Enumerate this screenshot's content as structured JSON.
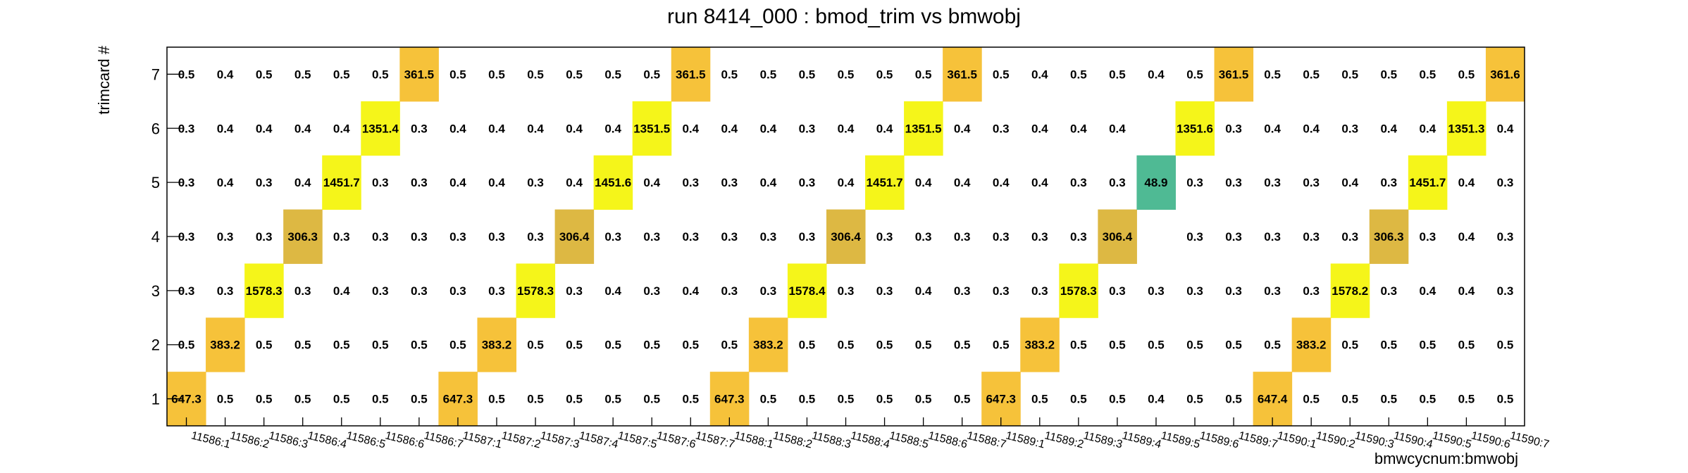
{
  "chart_data": {
    "type": "heatmap",
    "title": "run 8414_000 : bmod_trim vs bmwobj",
    "xlabel": "bmwcycnum:bmwobj",
    "ylabel": "trimcard #",
    "x_categories": [
      "11586:1",
      "11586:2",
      "11586:3",
      "11586:4",
      "11586:5",
      "11586:6",
      "11586:7",
      "11587:1",
      "11587:2",
      "11587:3",
      "11587:4",
      "11587:5",
      "11587:6",
      "11587:7",
      "11588:1",
      "11588:2",
      "11588:3",
      "11588:4",
      "11588:5",
      "11588:6",
      "11588:7",
      "11589:1",
      "11589:2",
      "11589:3",
      "11589:4",
      "11589:5",
      "11589:6",
      "11589:7",
      "11590:1",
      "11590:2",
      "11590:3",
      "11590:4",
      "11590:5",
      "11590:6",
      "11590:7"
    ],
    "y_categories": [
      "1",
      "2",
      "3",
      "4",
      "5",
      "6",
      "7"
    ],
    "rows": [
      [
        "647.3",
        "0.5",
        "0.5",
        "0.5",
        "0.5",
        "0.5",
        "0.5",
        "647.3",
        "0.5",
        "0.5",
        "0.5",
        "0.5",
        "0.5",
        "0.5",
        "647.3",
        "0.5",
        "0.5",
        "0.5",
        "0.5",
        "0.5",
        "0.5",
        "647.3",
        "0.5",
        "0.5",
        "0.5",
        "0.4",
        "0.5",
        "0.5",
        "647.4",
        "0.5",
        "0.5",
        "0.5",
        "0.5",
        "0.5",
        "0.5"
      ],
      [
        "0.5",
        "383.2",
        "0.5",
        "0.5",
        "0.5",
        "0.5",
        "0.5",
        "0.5",
        "383.2",
        "0.5",
        "0.5",
        "0.5",
        "0.5",
        "0.5",
        "0.5",
        "383.2",
        "0.5",
        "0.5",
        "0.5",
        "0.5",
        "0.5",
        "0.5",
        "383.2",
        "0.5",
        "0.5",
        "0.5",
        "0.5",
        "0.5",
        "0.5",
        "383.2",
        "0.5",
        "0.5",
        "0.5",
        "0.5",
        "0.5"
      ],
      [
        "0.3",
        "0.3",
        "1578.3",
        "0.3",
        "0.4",
        "0.3",
        "0.3",
        "0.3",
        "0.3",
        "1578.3",
        "0.3",
        "0.4",
        "0.3",
        "0.4",
        "0.3",
        "0.3",
        "1578.4",
        "0.3",
        "0.3",
        "0.4",
        "0.3",
        "0.3",
        "0.3",
        "1578.3",
        "0.3",
        "0.3",
        "0.3",
        "0.3",
        "0.3",
        "0.3",
        "1578.2",
        "0.3",
        "0.4",
        "0.4",
        "0.3"
      ],
      [
        "0.3",
        "0.3",
        "0.3",
        "306.3",
        "0.3",
        "0.3",
        "0.3",
        "0.3",
        "0.3",
        "0.3",
        "306.4",
        "0.3",
        "0.3",
        "0.3",
        "0.3",
        "0.3",
        "0.3",
        "306.4",
        "0.3",
        "0.3",
        "0.3",
        "0.3",
        "0.3",
        "0.3",
        "306.4",
        "",
        "0.3",
        "0.3",
        "0.3",
        "0.3",
        "0.3",
        "306.3",
        "0.3",
        "0.4",
        "0.3"
      ],
      [
        "0.3",
        "0.4",
        "0.3",
        "0.4",
        "1451.7",
        "0.3",
        "0.3",
        "0.4",
        "0.4",
        "0.3",
        "0.4",
        "1451.6",
        "0.4",
        "0.3",
        "0.3",
        "0.4",
        "0.3",
        "0.4",
        "1451.7",
        "0.4",
        "0.4",
        "0.4",
        "0.4",
        "0.3",
        "0.3",
        "48.9",
        "0.3",
        "0.3",
        "0.3",
        "0.3",
        "0.4",
        "0.3",
        "1451.7",
        "0.4",
        "0.3"
      ],
      [
        "0.3",
        "0.4",
        "0.4",
        "0.4",
        "0.4",
        "1351.4",
        "0.3",
        "0.4",
        "0.4",
        "0.4",
        "0.4",
        "0.4",
        "1351.5",
        "0.4",
        "0.4",
        "0.4",
        "0.3",
        "0.4",
        "0.4",
        "1351.5",
        "0.4",
        "0.3",
        "0.4",
        "0.4",
        "0.4",
        "",
        "1351.6",
        "0.3",
        "0.4",
        "0.4",
        "0.3",
        "0.4",
        "0.4",
        "1351.3",
        "0.4"
      ],
      [
        "0.5",
        "0.4",
        "0.5",
        "0.5",
        "0.5",
        "0.5",
        "361.5",
        "0.5",
        "0.5",
        "0.5",
        "0.5",
        "0.5",
        "0.5",
        "361.5",
        "0.5",
        "0.5",
        "0.5",
        "0.5",
        "0.5",
        "0.5",
        "361.5",
        "0.5",
        "0.4",
        "0.5",
        "0.5",
        "0.4",
        "0.5",
        "361.5",
        "0.5",
        "0.5",
        "0.5",
        "0.5",
        "0.5",
        "0.5",
        "361.6"
      ]
    ],
    "color_scale": [
      {
        "min": 0,
        "max": 100,
        "color": "#4fba94"
      },
      {
        "min": 300,
        "max": 340,
        "color": "#ddb843"
      },
      {
        "min": 340,
        "max": 700,
        "color": "#f6c23a"
      },
      {
        "min": 1300,
        "max": 1700,
        "color": "#f5f51a"
      }
    ],
    "highlight_threshold": 10,
    "grid": false,
    "legend": "none"
  }
}
